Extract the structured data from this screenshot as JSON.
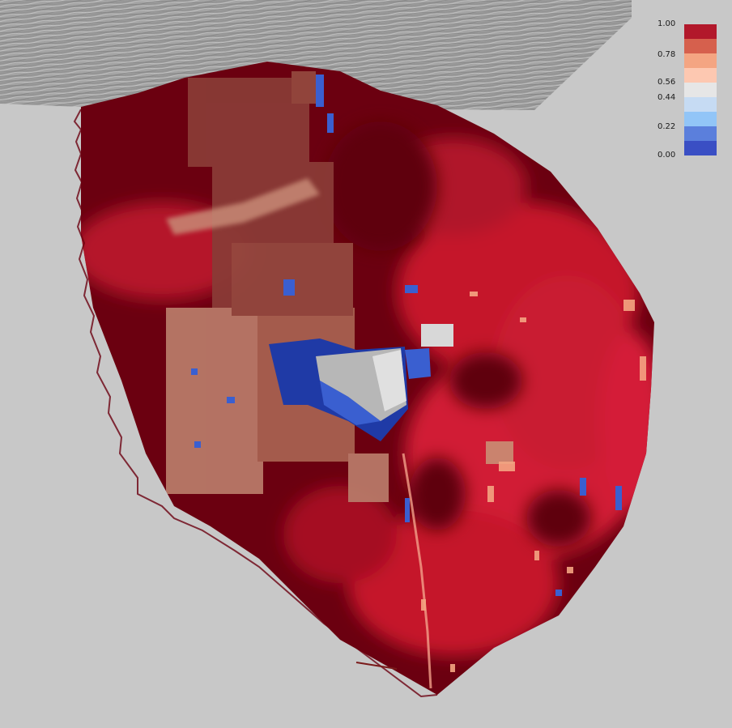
{
  "colorbar": {
    "tick_labels": [
      "1.00",
      "0.78",
      "0.56",
      "0.44",
      "0.22",
      "0.00"
    ],
    "bands": [
      {
        "color": "#b2182b"
      },
      {
        "color": "#d6604d"
      },
      {
        "color": "#f4a582"
      },
      {
        "color": "#fdc8b1"
      },
      {
        "color": "#e6e6e6"
      },
      {
        "color": "#c6dbf3"
      },
      {
        "color": "#92c5f7"
      },
      {
        "color": "#5b7fdc"
      },
      {
        "color": "#3a4fc4"
      }
    ]
  },
  "colors": {
    "background": "#c8c8c8",
    "surface_dark": "#6b0010",
    "surface_mid": "#a50f24",
    "surface_bright": "#d11c34",
    "patch_salmon": "#b87968",
    "patch_brown": "#8a3a36",
    "blue_dark": "#1f3aa6",
    "blue_mid": "#3a5fd0",
    "grey_light": "#d8d8d8",
    "terrain_grey": "#9a9a9a"
  }
}
